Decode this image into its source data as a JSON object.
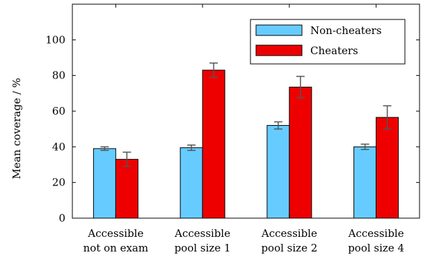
{
  "chart_data": {
    "type": "bar",
    "title": "",
    "xlabel": "",
    "ylabel": "Mean coverage / %",
    "ylim": [
      0,
      120
    ],
    "yticks": [
      0,
      20,
      40,
      60,
      80,
      100
    ],
    "grid": false,
    "legend_position": "top-right",
    "categories": [
      [
        "Accessible",
        "not on exam"
      ],
      [
        "Accessible",
        "pool size 1"
      ],
      [
        "Accessible",
        "pool size 2"
      ],
      [
        "Accessible",
        "pool size 4"
      ]
    ],
    "series": [
      {
        "name": "Non-cheaters",
        "color": "#66ccff",
        "values": [
          39,
          39.5,
          52,
          40
        ],
        "errors": [
          1,
          1.5,
          2,
          1.5
        ]
      },
      {
        "name": "Cheaters",
        "color": "#ee0000",
        "values": [
          33,
          83,
          73.5,
          56.5
        ],
        "errors": [
          4,
          4,
          6,
          6.5
        ]
      }
    ]
  }
}
